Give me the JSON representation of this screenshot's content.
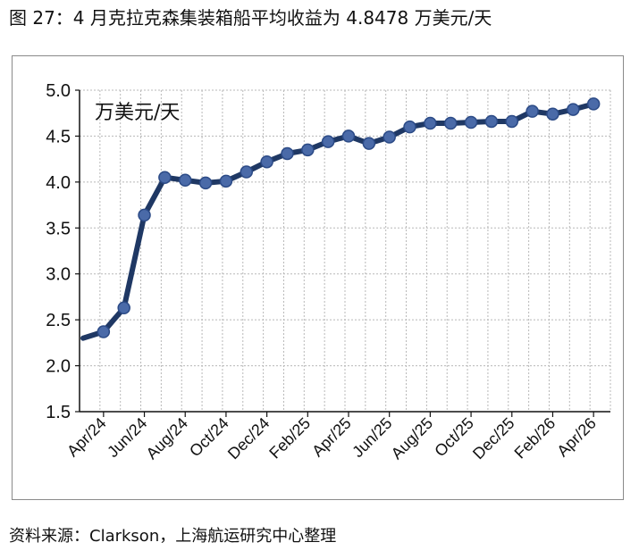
{
  "figure": {
    "caption": "图 27：4 月克拉克森集装箱船平均收益为 4.8478 万美元/天",
    "source": "资料来源：Clarkson，上海航运研究中心整理"
  },
  "chart_data": {
    "type": "line",
    "title": "",
    "ylabel": "万美元/天",
    "xlabel": "",
    "ylim": [
      1.5,
      5.0
    ],
    "yticks": [
      1.5,
      2.0,
      2.5,
      3.0,
      3.5,
      4.0,
      4.5,
      5.0
    ],
    "ytick_labels": [
      "1.5",
      "2.0",
      "2.5",
      "3.0",
      "3.5",
      "4.0",
      "4.5",
      "5.0"
    ],
    "grid": true,
    "legend": "none",
    "line_color": "#1f3864",
    "marker_color": "#4a6aa8",
    "x": [
      "Mar/24",
      "Apr/24",
      "May/24",
      "Jun/24",
      "Jul/24",
      "Aug/24",
      "Sep/24",
      "Oct/24",
      "Nov/24",
      "Dec/24",
      "Jan/25",
      "Feb/25",
      "Mar/25",
      "Apr/25",
      "May/25",
      "Jun/25",
      "Jul/25",
      "Aug/25",
      "Sep/25",
      "Oct/25",
      "Nov/25",
      "Dec/25",
      "Jan/26",
      "Feb/26",
      "Mar/26",
      "Apr/26"
    ],
    "xtick_labels": [
      "Apr/24",
      "Jun/24",
      "Aug/24",
      "Oct/24",
      "Dec/24",
      "Feb/25",
      "Apr/25",
      "Jun/25",
      "Aug/25",
      "Oct/25",
      "Dec/25",
      "Feb/26",
      "Apr/26"
    ],
    "series": [
      {
        "values": [
          2.3,
          2.37,
          2.63,
          3.64,
          4.05,
          4.02,
          3.99,
          4.01,
          4.11,
          4.22,
          4.31,
          4.35,
          4.44,
          4.5,
          4.42,
          4.49,
          4.6,
          4.64,
          4.64,
          4.65,
          4.66,
          4.66,
          4.77,
          4.74,
          4.79,
          4.85
        ],
        "markers": [
          false,
          true,
          true,
          true,
          true,
          true,
          true,
          true,
          true,
          true,
          true,
          true,
          true,
          true,
          true,
          true,
          true,
          true,
          true,
          true,
          true,
          true,
          true,
          true,
          true,
          true
        ]
      }
    ]
  }
}
